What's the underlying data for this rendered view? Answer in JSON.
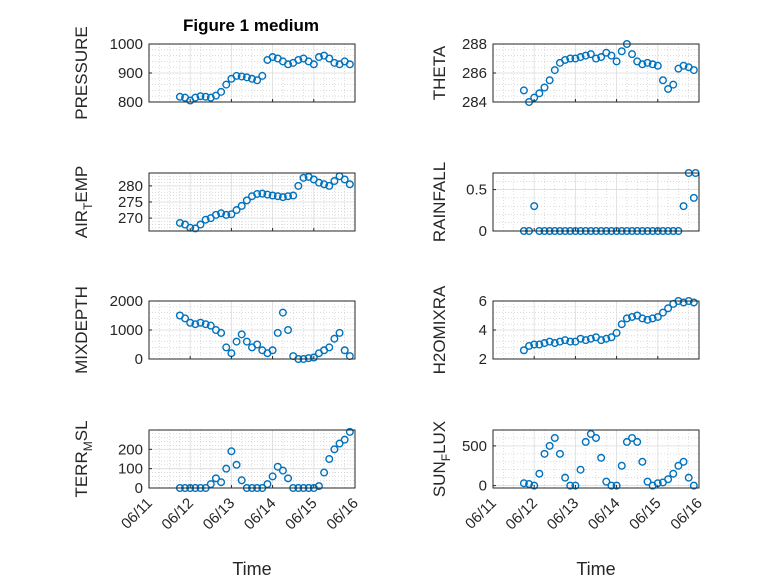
{
  "figure": {
    "title": "Figure 1 medium",
    "marker_color": "#0072BD",
    "grid": true,
    "x_tick_labels": [
      "06/11",
      "06/12",
      "06/13",
      "06/14",
      "06/15",
      "06/16"
    ],
    "x_label": "Time"
  },
  "chart_data": [
    {
      "type": "scatter",
      "ylabel": "PRESSURE",
      "ylim": [
        800,
        1000
      ],
      "yticks": [
        "800",
        "900",
        "1000"
      ],
      "xlim": [
        "06/11",
        "06/16"
      ],
      "series": [
        {
          "x": [
            "06/11 18:00",
            "06/11 21:00",
            "06/12 00:00",
            "06/12 03:00",
            "06/12 06:00",
            "06/12 09:00",
            "06/12 12:00",
            "06/12 15:00",
            "06/12 18:00",
            "06/12 21:00",
            "06/13 00:00",
            "06/13 03:00",
            "06/13 06:00",
            "06/13 09:00",
            "06/13 12:00",
            "06/13 15:00",
            "06/13 18:00",
            "06/13 21:00",
            "06/14 00:00",
            "06/14 03:00",
            "06/14 06:00",
            "06/14 09:00",
            "06/14 12:00",
            "06/14 15:00",
            "06/14 18:00",
            "06/14 21:00",
            "06/15 00:00",
            "06/15 03:00",
            "06/15 06:00",
            "06/15 09:00",
            "06/15 12:00",
            "06/15 15:00",
            "06/15 18:00",
            "06/15 21:00"
          ],
          "y": [
            818,
            815,
            805,
            815,
            820,
            818,
            815,
            822,
            835,
            860,
            880,
            890,
            888,
            885,
            880,
            875,
            890,
            945,
            955,
            950,
            940,
            930,
            935,
            945,
            950,
            940,
            930,
            955,
            960,
            950,
            935,
            930,
            940,
            930
          ]
        }
      ]
    },
    {
      "type": "scatter",
      "ylabel": "THETA",
      "ylim": [
        284,
        288
      ],
      "yticks": [
        "284",
        "286",
        "288"
      ],
      "xlim": [
        "06/11",
        "06/16"
      ],
      "series": [
        {
          "x": [
            "06/11 18:00",
            "06/11 21:00",
            "06/12 00:00",
            "06/12 03:00",
            "06/12 06:00",
            "06/12 09:00",
            "06/12 12:00",
            "06/12 15:00",
            "06/12 18:00",
            "06/12 21:00",
            "06/13 00:00",
            "06/13 03:00",
            "06/13 06:00",
            "06/13 09:00",
            "06/13 12:00",
            "06/13 15:00",
            "06/13 18:00",
            "06/13 21:00",
            "06/14 00:00",
            "06/14 03:00",
            "06/14 06:00",
            "06/14 09:00",
            "06/14 12:00",
            "06/14 15:00",
            "06/14 18:00",
            "06/14 21:00",
            "06/15 00:00",
            "06/15 03:00",
            "06/15 06:00",
            "06/15 09:00",
            "06/15 12:00",
            "06/15 15:00",
            "06/15 18:00",
            "06/15 21:00"
          ],
          "y": [
            284.8,
            284.0,
            284.3,
            284.6,
            285.0,
            285.5,
            286.2,
            286.7,
            286.9,
            287.0,
            287.0,
            287.1,
            287.2,
            287.3,
            287.0,
            287.1,
            287.4,
            287.2,
            286.8,
            287.5,
            288.0,
            287.3,
            286.8,
            286.6,
            286.7,
            286.6,
            286.5,
            285.5,
            284.9,
            285.2,
            286.3,
            286.5,
            286.4,
            286.2
          ]
        }
      ]
    },
    {
      "type": "scatter",
      "ylabel": "AIR_TEMP",
      "ylim": [
        266,
        284
      ],
      "yticks": [
        "270",
        "275",
        "280"
      ],
      "xlim": [
        "06/11",
        "06/16"
      ],
      "series": [
        {
          "x": [
            "06/11 18:00",
            "06/11 21:00",
            "06/12 00:00",
            "06/12 03:00",
            "06/12 06:00",
            "06/12 09:00",
            "06/12 12:00",
            "06/12 15:00",
            "06/12 18:00",
            "06/12 21:00",
            "06/13 00:00",
            "06/13 03:00",
            "06/13 06:00",
            "06/13 09:00",
            "06/13 12:00",
            "06/13 15:00",
            "06/13 18:00",
            "06/13 21:00",
            "06/14 00:00",
            "06/14 03:00",
            "06/14 06:00",
            "06/14 09:00",
            "06/14 12:00",
            "06/14 15:00",
            "06/14 18:00",
            "06/14 21:00",
            "06/15 00:00",
            "06/15 03:00",
            "06/15 06:00",
            "06/15 09:00",
            "06/15 12:00",
            "06/15 15:00",
            "06/15 18:00",
            "06/15 21:00"
          ],
          "y": [
            268.5,
            268.0,
            267.0,
            266.8,
            268.0,
            269.5,
            270.0,
            271.0,
            271.5,
            271.0,
            271.2,
            272.5,
            273.8,
            275.5,
            276.8,
            277.5,
            277.6,
            277.3,
            277.0,
            276.8,
            276.5,
            276.8,
            277.0,
            280.0,
            282.5,
            282.8,
            282.0,
            281.0,
            280.5,
            280.0,
            281.5,
            283.0,
            282.0,
            280.5
          ]
        }
      ]
    },
    {
      "type": "scatter",
      "ylabel": "RAINFALL",
      "ylim": [
        0,
        0.7
      ],
      "yticks": [
        "0",
        "0.5"
      ],
      "xlim": [
        "06/11",
        "06/16"
      ],
      "series": [
        {
          "x": [
            "06/11 18:00",
            "06/11 21:00",
            "06/12 00:00",
            "06/12 03:00",
            "06/12 06:00",
            "06/12 09:00",
            "06/12 12:00",
            "06/12 15:00",
            "06/12 18:00",
            "06/12 21:00",
            "06/13 00:00",
            "06/13 03:00",
            "06/13 06:00",
            "06/13 09:00",
            "06/13 12:00",
            "06/13 15:00",
            "06/13 18:00",
            "06/13 21:00",
            "06/14 00:00",
            "06/14 03:00",
            "06/14 06:00",
            "06/14 09:00",
            "06/14 12:00",
            "06/14 15:00",
            "06/14 18:00",
            "06/14 21:00",
            "06/15 00:00",
            "06/15 03:00",
            "06/15 06:00",
            "06/15 09:00",
            "06/15 12:00",
            "06/15 15:00",
            "06/15 18:00",
            "06/15 21:00",
            "06/15 22:00"
          ],
          "y": [
            0,
            0,
            0.3,
            0,
            0,
            0,
            0,
            0,
            0,
            0,
            0,
            0,
            0,
            0,
            0,
            0,
            0,
            0,
            0,
            0,
            0,
            0,
            0,
            0,
            0,
            0,
            0,
            0,
            0,
            0,
            0,
            0.3,
            0.7,
            0.4,
            0.7
          ]
        }
      ]
    },
    {
      "type": "scatter",
      "ylabel": "MIXDEPTH",
      "ylim": [
        0,
        2000
      ],
      "yticks": [
        "0",
        "1000",
        "2000"
      ],
      "xlim": [
        "06/11",
        "06/16"
      ],
      "series": [
        {
          "x": [
            "06/11 18:00",
            "06/11 21:00",
            "06/12 00:00",
            "06/12 03:00",
            "06/12 06:00",
            "06/12 09:00",
            "06/12 12:00",
            "06/12 15:00",
            "06/12 18:00",
            "06/12 21:00",
            "06/13 00:00",
            "06/13 03:00",
            "06/13 06:00",
            "06/13 09:00",
            "06/13 12:00",
            "06/13 15:00",
            "06/13 18:00",
            "06/13 21:00",
            "06/14 00:00",
            "06/14 03:00",
            "06/14 06:00",
            "06/14 09:00",
            "06/14 12:00",
            "06/14 15:00",
            "06/14 18:00",
            "06/14 21:00",
            "06/15 00:00",
            "06/15 03:00",
            "06/15 06:00",
            "06/15 09:00",
            "06/15 12:00",
            "06/15 15:00",
            "06/15 18:00",
            "06/15 21:00"
          ],
          "y": [
            1500,
            1400,
            1250,
            1200,
            1250,
            1200,
            1150,
            1000,
            900,
            400,
            200,
            600,
            850,
            600,
            400,
            500,
            300,
            200,
            300,
            900,
            1600,
            1000,
            100,
            0,
            0,
            30,
            50,
            200,
            300,
            400,
            700,
            900,
            300,
            100
          ]
        }
      ]
    },
    {
      "type": "scatter",
      "ylabel": "H2OMIXRA",
      "ylim": [
        2,
        6
      ],
      "yticks": [
        "2",
        "4",
        "6"
      ],
      "xlim": [
        "06/11",
        "06/16"
      ],
      "series": [
        {
          "x": [
            "06/11 18:00",
            "06/11 21:00",
            "06/12 00:00",
            "06/12 03:00",
            "06/12 06:00",
            "06/12 09:00",
            "06/12 12:00",
            "06/12 15:00",
            "06/12 18:00",
            "06/12 21:00",
            "06/13 00:00",
            "06/13 03:00",
            "06/13 06:00",
            "06/13 09:00",
            "06/13 12:00",
            "06/13 15:00",
            "06/13 18:00",
            "06/13 21:00",
            "06/14 00:00",
            "06/14 03:00",
            "06/14 06:00",
            "06/14 09:00",
            "06/14 12:00",
            "06/14 15:00",
            "06/14 18:00",
            "06/14 21:00",
            "06/15 00:00",
            "06/15 03:00",
            "06/15 06:00",
            "06/15 09:00",
            "06/15 12:00",
            "06/15 15:00",
            "06/15 18:00",
            "06/15 21:00"
          ],
          "y": [
            2.6,
            2.9,
            3.0,
            3.0,
            3.1,
            3.2,
            3.1,
            3.2,
            3.3,
            3.2,
            3.2,
            3.4,
            3.3,
            3.4,
            3.5,
            3.3,
            3.4,
            3.5,
            3.8,
            4.4,
            4.8,
            4.9,
            5.0,
            4.8,
            4.7,
            4.8,
            4.9,
            5.2,
            5.5,
            5.8,
            6.0,
            5.9,
            6.0,
            5.9
          ]
        }
      ]
    },
    {
      "type": "scatter",
      "ylabel": "TERR_MSL",
      "ylim": [
        0,
        300
      ],
      "yticks": [
        "0",
        "100",
        "200"
      ],
      "xlim": [
        "06/11",
        "06/16"
      ],
      "series": [
        {
          "x": [
            "06/11 18:00",
            "06/11 21:00",
            "06/12 00:00",
            "06/12 03:00",
            "06/12 06:00",
            "06/12 09:00",
            "06/12 12:00",
            "06/12 15:00",
            "06/12 18:00",
            "06/12 21:00",
            "06/13 00:00",
            "06/13 03:00",
            "06/13 06:00",
            "06/13 09:00",
            "06/13 12:00",
            "06/13 15:00",
            "06/13 18:00",
            "06/13 21:00",
            "06/14 00:00",
            "06/14 03:00",
            "06/14 06:00",
            "06/14 09:00",
            "06/14 12:00",
            "06/14 15:00",
            "06/14 18:00",
            "06/14 21:00",
            "06/15 00:00",
            "06/15 03:00",
            "06/15 06:00",
            "06/15 09:00",
            "06/15 12:00",
            "06/15 15:00",
            "06/15 18:00",
            "06/15 21:00"
          ],
          "y": [
            0,
            0,
            0,
            0,
            0,
            0,
            20,
            50,
            30,
            100,
            190,
            120,
            40,
            0,
            0,
            0,
            0,
            20,
            60,
            110,
            90,
            50,
            0,
            0,
            0,
            0,
            0,
            10,
            80,
            150,
            200,
            230,
            250,
            290
          ]
        }
      ]
    },
    {
      "type": "scatter",
      "ylabel": "SUN_FLUX",
      "ylim": [
        -30,
        700
      ],
      "yticks": [
        "0",
        "500"
      ],
      "xlim": [
        "06/11",
        "06/16"
      ],
      "series": [
        {
          "x": [
            "06/11 18:00",
            "06/11 21:00",
            "06/12 00:00",
            "06/12 03:00",
            "06/12 06:00",
            "06/12 09:00",
            "06/12 12:00",
            "06/12 15:00",
            "06/12 18:00",
            "06/12 21:00",
            "06/13 00:00",
            "06/13 03:00",
            "06/13 06:00",
            "06/13 09:00",
            "06/13 12:00",
            "06/13 15:00",
            "06/13 18:00",
            "06/13 21:00",
            "06/14 00:00",
            "06/14 03:00",
            "06/14 06:00",
            "06/14 09:00",
            "06/14 12:00",
            "06/14 15:00",
            "06/14 18:00",
            "06/14 21:00",
            "06/15 00:00",
            "06/15 03:00",
            "06/15 06:00",
            "06/15 09:00",
            "06/15 12:00",
            "06/15 15:00",
            "06/15 18:00",
            "06/15 21:00"
          ],
          "y": [
            30,
            20,
            0,
            150,
            400,
            500,
            600,
            400,
            100,
            0,
            0,
            200,
            550,
            650,
            600,
            350,
            50,
            0,
            0,
            250,
            550,
            600,
            550,
            300,
            50,
            0,
            30,
            40,
            80,
            150,
            250,
            300,
            100,
            0
          ]
        }
      ]
    }
  ]
}
